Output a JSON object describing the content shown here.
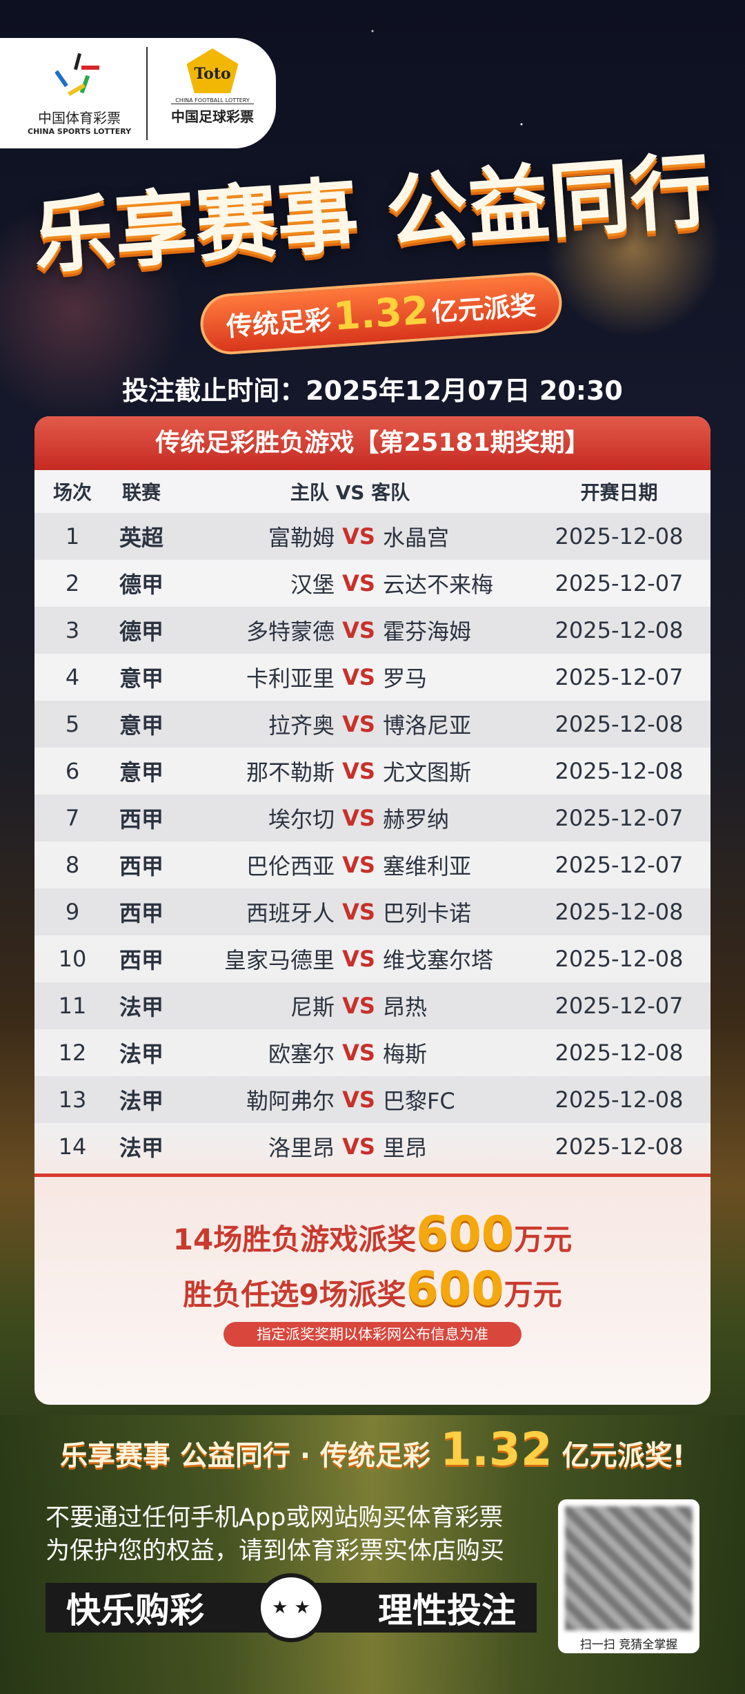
{
  "logos": {
    "sports_cn": "中国体育彩票",
    "sports_en": "CHINA SPORTS LOTTERY",
    "toto": "Toto",
    "football_en": "CHINA FOOTBALL LOTTERY",
    "football_cn": "中国足球彩票"
  },
  "headline": "乐享赛事 公益同行",
  "pill": {
    "prefix": "传统足彩",
    "amount": "1.32",
    "suffix": "亿元派奖"
  },
  "deadline": "投注截止时间：2025年12月07日 20:30",
  "table": {
    "title": "传统足彩胜负游戏【第25181期奖期】",
    "headers": {
      "no": "场次",
      "league": "联赛",
      "match": "主队 VS 客队",
      "date": "开赛日期"
    },
    "vs": "VS",
    "rows": [
      {
        "no": "1",
        "league": "英超",
        "home": "富勒姆",
        "away": "水晶宫",
        "date": "2025-12-08"
      },
      {
        "no": "2",
        "league": "德甲",
        "home": "汉堡",
        "away": "云达不来梅",
        "date": "2025-12-07"
      },
      {
        "no": "3",
        "league": "德甲",
        "home": "多特蒙德",
        "away": "霍芬海姆",
        "date": "2025-12-08"
      },
      {
        "no": "4",
        "league": "意甲",
        "home": "卡利亚里",
        "away": "罗马",
        "date": "2025-12-07"
      },
      {
        "no": "5",
        "league": "意甲",
        "home": "拉齐奥",
        "away": "博洛尼亚",
        "date": "2025-12-08"
      },
      {
        "no": "6",
        "league": "意甲",
        "home": "那不勒斯",
        "away": "尤文图斯",
        "date": "2025-12-08"
      },
      {
        "no": "7",
        "league": "西甲",
        "home": "埃尔切",
        "away": "赫罗纳",
        "date": "2025-12-07"
      },
      {
        "no": "8",
        "league": "西甲",
        "home": "巴伦西亚",
        "away": "塞维利亚",
        "date": "2025-12-07"
      },
      {
        "no": "9",
        "league": "西甲",
        "home": "西班牙人",
        "away": "巴列卡诺",
        "date": "2025-12-08"
      },
      {
        "no": "10",
        "league": "西甲",
        "home": "皇家马德里",
        "away": "维戈塞尔塔",
        "date": "2025-12-08"
      },
      {
        "no": "11",
        "league": "法甲",
        "home": "尼斯",
        "away": "昂热",
        "date": "2025-12-07"
      },
      {
        "no": "12",
        "league": "法甲",
        "home": "欧塞尔",
        "away": "梅斯",
        "date": "2025-12-08"
      },
      {
        "no": "13",
        "league": "法甲",
        "home": "勒阿弗尔",
        "away": "巴黎FC",
        "date": "2025-12-08"
      },
      {
        "no": "14",
        "league": "法甲",
        "home": "洛里昂",
        "away": "里昂",
        "date": "2025-12-08"
      }
    ]
  },
  "prizes": [
    {
      "prefix": "14场胜负游戏派奖",
      "amount": "600",
      "unit": "万元"
    },
    {
      "prefix": "胜负任选9场派奖",
      "amount": "600",
      "unit": "万元"
    }
  ],
  "notice": "指定派奖奖期以体彩网公布信息为准",
  "slogan": {
    "prefix": "乐享赛事 公益同行 · 传统足彩",
    "amount": "1.32",
    "suffix": "亿元派奖!"
  },
  "warning": [
    "不要通过任何手机App或网站购买体育彩票",
    "为保护您的权益，请到体育彩票实体店购买"
  ],
  "bar": {
    "left": "快乐购彩",
    "right": "理性投注",
    "smile": "★ ★"
  },
  "qr": {
    "caption": "扫一扫  竞猜全掌握"
  },
  "colors": {
    "accent_red": "#c62a22",
    "gold": "#f5a80e",
    "vs": "#c8302a"
  }
}
